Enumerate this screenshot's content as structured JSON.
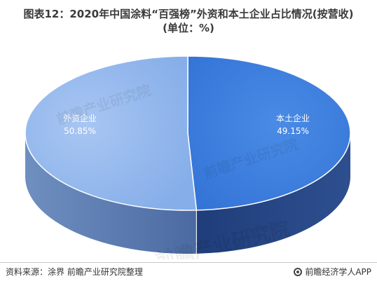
{
  "title": {
    "line1": "图表12：2020年中国涂料“百强榜”外资和本土企业占比情况(按营收)",
    "line2": "(单位：%)"
  },
  "chart_data": {
    "type": "pie",
    "title": "图表12：2020年中国涂料“百强榜”外资和本土企业占比情况(按营收)",
    "subtitle": "(单位：%)",
    "slices": [
      {
        "label": "本土企业",
        "value": 49.15,
        "display": "49.15%",
        "color": "#3f7fe0"
      },
      {
        "label": "外资企业",
        "value": 50.85,
        "display": "50.85%",
        "color": "#90b6ee"
      }
    ],
    "style": "3d",
    "legend": "none"
  },
  "footer": {
    "source": "资料来源：涂界 前瞻产业研究院整理",
    "brand": "前瞻经济学人APP"
  },
  "watermark": {
    "text": "前瞻产业研究院"
  }
}
